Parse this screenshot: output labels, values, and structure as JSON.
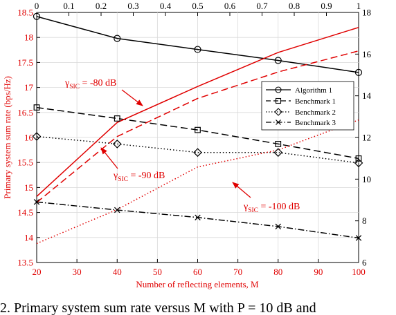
{
  "chart_data": {
    "type": "line",
    "xlabel": "Number of reflecting elements, M",
    "ylabel": "Primary system sum rate (bps/Hz)",
    "x": [
      20,
      40,
      60,
      80,
      100
    ],
    "x_ticks": [
      "20",
      "30",
      "40",
      "50",
      "60",
      "70",
      "80",
      "90",
      "100"
    ],
    "xlim": [
      20,
      100
    ],
    "ylim": [
      13.5,
      18.5
    ],
    "y_ticks": [
      "13.5",
      "14",
      "14.5",
      "15",
      "15.5",
      "16",
      "16.5",
      "17",
      "17.5",
      "18",
      "18.5"
    ],
    "top_ticks": [
      "0",
      "0.1",
      "0.2",
      "0.3",
      "0.4",
      "0.5",
      "0.6",
      "0.7",
      "0.8",
      "0.9",
      "1"
    ],
    "top_lim": [
      0,
      1
    ],
    "right_ticks": [
      "6",
      "8",
      "10",
      "12",
      "14",
      "16",
      "18"
    ],
    "right_lim": [
      6,
      18
    ],
    "grid": true,
    "legend_position": "right, middle",
    "series": [
      {
        "name": "Algorithm 1",
        "axis": "top-left",
        "x": [
          0,
          0.25,
          0.5,
          0.75,
          1
        ],
        "values": [
          18.42,
          17.98,
          17.76,
          17.54,
          17.3
        ],
        "color": "#000000",
        "dash": "solid",
        "marker": "circle"
      },
      {
        "name": "Benchmark 1",
        "axis": "top-left",
        "x": [
          0,
          0.25,
          0.5,
          0.75,
          1
        ],
        "values": [
          16.6,
          16.38,
          16.15,
          15.87,
          15.58
        ],
        "color": "#000000",
        "dash": "dashed",
        "marker": "square"
      },
      {
        "name": "Benchmark 2",
        "axis": "top-left",
        "x": [
          0,
          0.25,
          0.5,
          0.75,
          1
        ],
        "values": [
          16.02,
          15.87,
          15.7,
          15.7,
          15.49
        ],
        "color": "#000000",
        "dash": "dotted",
        "marker": "diamond"
      },
      {
        "name": "Benchmark 3",
        "axis": "top-left",
        "x": [
          0,
          0.25,
          0.5,
          0.75,
          1
        ],
        "values": [
          14.71,
          14.55,
          14.4,
          14.22,
          13.99
        ],
        "color": "#000000",
        "dash": "dashdot",
        "marker": "x"
      },
      {
        "name": "",
        "axis": "bottom-left",
        "x": [
          20,
          40,
          60,
          80,
          100
        ],
        "values": [
          14.82,
          16.3,
          17.02,
          17.7,
          18.2
        ],
        "color": "#e00000",
        "dash": "solid",
        "marker": "none"
      },
      {
        "name": "",
        "axis": "bottom-left",
        "x": [
          20,
          40,
          60,
          80,
          100
        ],
        "values": [
          14.7,
          16.02,
          16.78,
          17.31,
          17.73
        ],
        "color": "#e00000",
        "dash": "dashed",
        "marker": "none"
      },
      {
        "name": "",
        "axis": "bottom-left",
        "x": [
          20,
          40,
          60,
          80,
          100
        ],
        "values": [
          13.88,
          14.56,
          15.41,
          15.75,
          16.35
        ],
        "color": "#e00000",
        "dash": "dotted",
        "marker": "none"
      }
    ],
    "annotations": [
      {
        "label": "γSIC = -80 dB",
        "label_main": "γ",
        "label_sub": "SIC",
        "label_rest": " = -80 dB"
      },
      {
        "label": "γSIC = -90 dB",
        "label_main": "γ",
        "label_sub": "SIC",
        "label_rest": " = -90 dB"
      },
      {
        "label": "γSIC = -100 dB",
        "label_main": "γ",
        "label_sub": "SIC",
        "label_rest": " = -100 dB"
      }
    ]
  },
  "caption": "2. Primary system sum rate versus M with P = 10 dB and"
}
